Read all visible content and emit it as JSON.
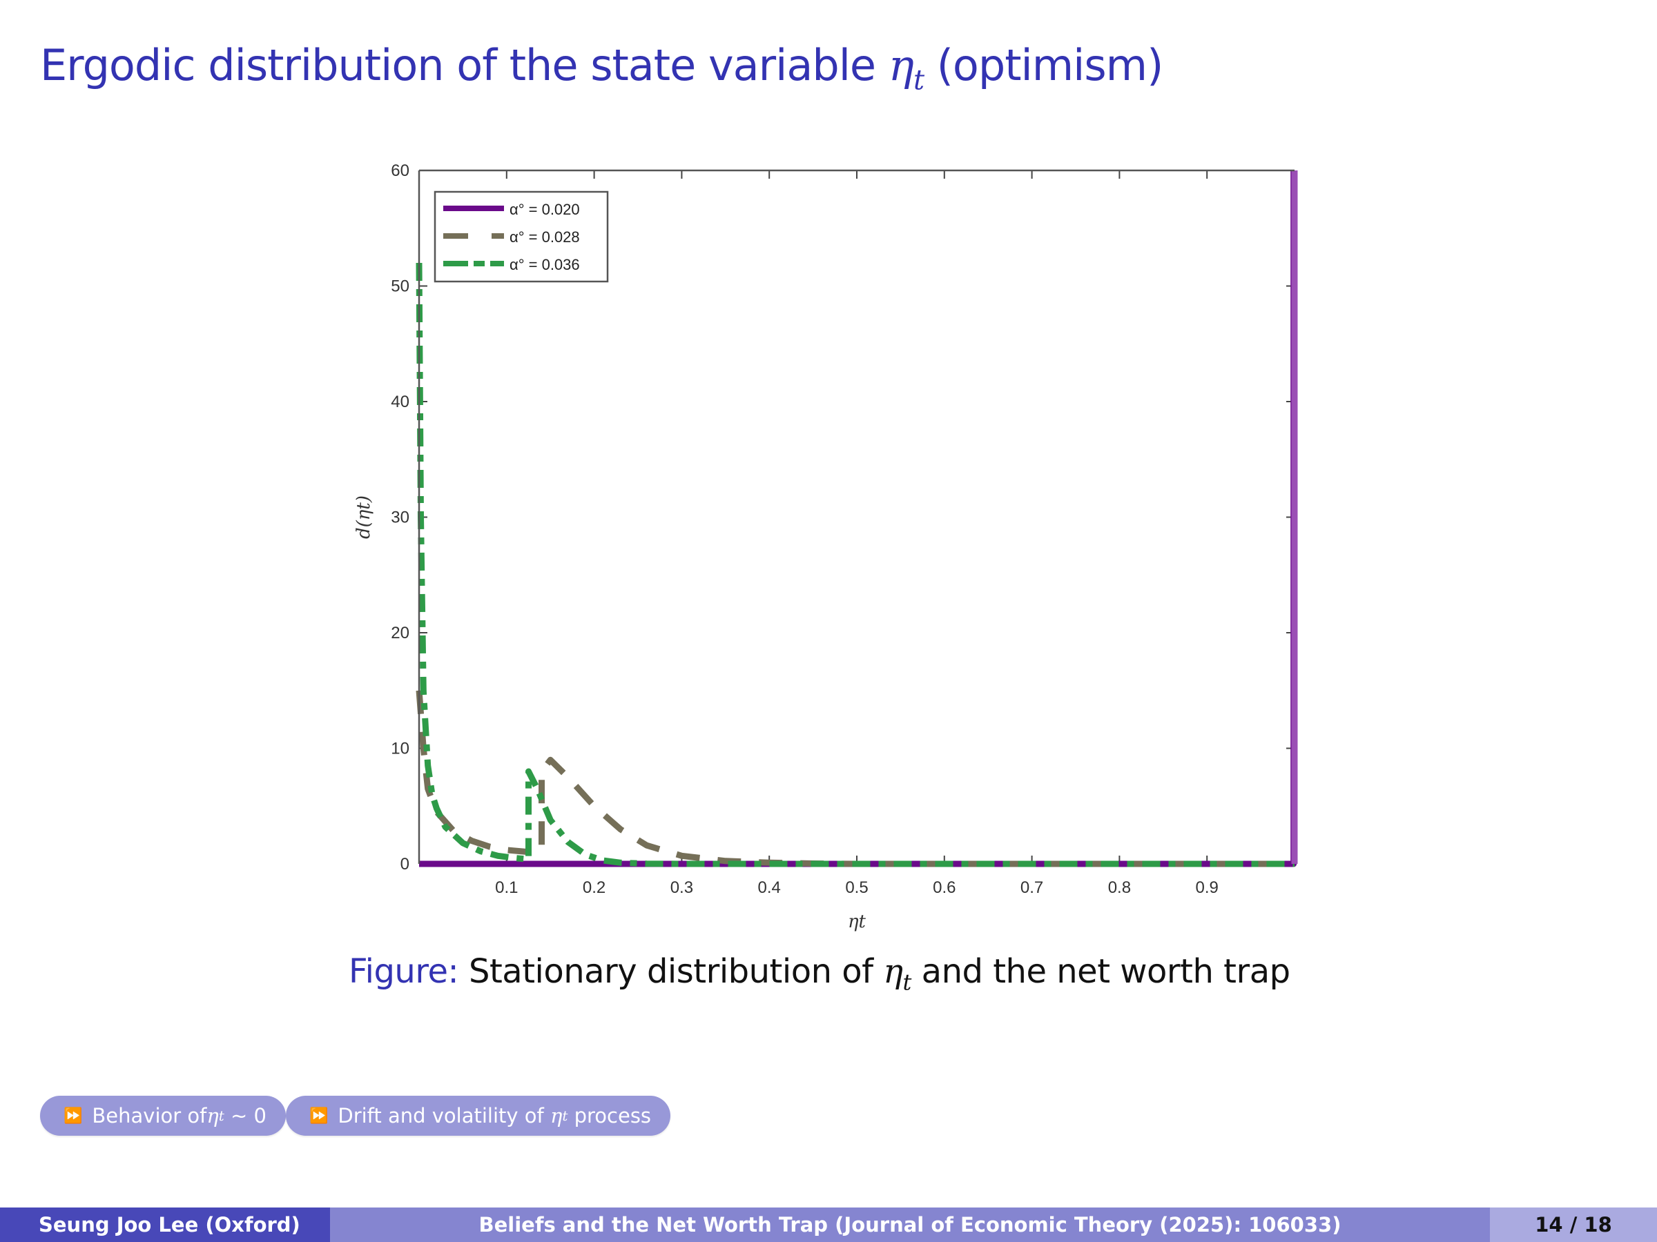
{
  "slide": {
    "title_prefix": "Ergodic distribution of the state variable ",
    "title_math": "η",
    "title_sub": "t",
    "title_suffix": " (optimism)"
  },
  "caption": {
    "label": "Figure:",
    "text_prefix": " Stationary distribution of ",
    "math": "η",
    "sub": "t",
    "text_suffix": " and the net worth trap"
  },
  "buttons": [
    {
      "icon": "double-arrow-icon",
      "glyph": "⏩",
      "prefix": "Behavior of ",
      "math": "η",
      "sub": "t",
      "suffix": " ∼ 0"
    },
    {
      "icon": "double-arrow-icon",
      "glyph": "⏩",
      "prefix": "Drift and volatility of ",
      "math": "η",
      "sub": "t",
      "suffix": " process"
    }
  ],
  "footer": {
    "author": "Seung Joo Lee (Oxford)",
    "talk_title": "Beliefs and the Net Worth Trap (Journal of Economic Theory (2025): 106033)",
    "page": "14 / 18"
  },
  "chart_data": {
    "type": "line",
    "title": "",
    "xlabel": "ηt",
    "ylabel": "d(ηt)",
    "xlim": [
      0,
      1
    ],
    "ylim": [
      0,
      60
    ],
    "xticks": [
      0.1,
      0.2,
      0.3,
      0.4,
      0.5,
      0.6,
      0.7,
      0.8,
      0.9
    ],
    "yticks": [
      0,
      10,
      20,
      30,
      40,
      50,
      60
    ],
    "grid": false,
    "legend_position": "upper-left",
    "series": [
      {
        "name": "α° = 0.020",
        "color": "#6a0a8a",
        "style": "solid",
        "note": "mass concentrated at η=1 (vertical line at right edge)",
        "x": [
          0,
          0.5,
          0.999,
          0.999
        ],
        "y": [
          0,
          0,
          0,
          60
        ]
      },
      {
        "name": "α° = 0.028",
        "color": "#756f58",
        "style": "dashed",
        "x": [
          0.0,
          0.005,
          0.01,
          0.02,
          0.04,
          0.06,
          0.08,
          0.1,
          0.13,
          0.14,
          0.14,
          0.15,
          0.17,
          0.2,
          0.23,
          0.26,
          0.3,
          0.35,
          0.4,
          0.45,
          0.5,
          1.0
        ],
        "y": [
          15,
          10,
          6.5,
          4.5,
          2.8,
          2.0,
          1.5,
          1.2,
          1.0,
          1.0,
          8.0,
          9.0,
          7.5,
          5.0,
          3.0,
          1.6,
          0.7,
          0.25,
          0.1,
          0.03,
          0.0,
          0.0
        ]
      },
      {
        "name": "α° = 0.036",
        "color": "#2e9b48",
        "style": "dash-dot",
        "x": [
          0.0,
          0.002,
          0.005,
          0.01,
          0.015,
          0.02,
          0.03,
          0.05,
          0.07,
          0.09,
          0.11,
          0.125,
          0.125,
          0.135,
          0.15,
          0.17,
          0.19,
          0.21,
          0.23,
          0.26,
          0.3,
          1.0
        ],
        "y": [
          52,
          30,
          15,
          8.5,
          6.0,
          4.8,
          3.2,
          1.8,
          1.1,
          0.7,
          0.5,
          0.4,
          8.0,
          6.5,
          3.8,
          1.9,
          0.8,
          0.3,
          0.1,
          0.02,
          0.0,
          0.0
        ]
      }
    ]
  }
}
